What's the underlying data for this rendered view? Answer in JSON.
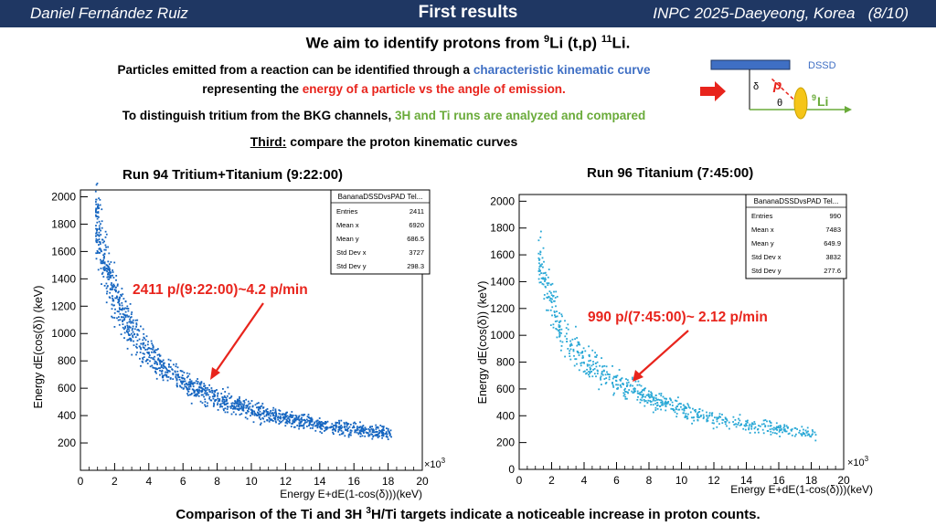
{
  "header": {
    "author": "Daniel Fernández Ruiz",
    "title": "First results",
    "conference": "INPC 2025-Daeyeong, Korea",
    "page": "(8/10)"
  },
  "headline": {
    "pre": "We aim to identify protons from ",
    "sup1": "9",
    "mid": "Li (t,p) ",
    "sup2": "11",
    "post": "Li."
  },
  "intro": {
    "line1_pre": "Particles emitted from a reaction can be identified through a ",
    "line1_colored": "characteristic kinematic curve",
    "line2_pre": "representing the ",
    "line2_colored": "energy of a particle vs the angle of emission.",
    "line3_pre": "To distinguish tritium from the BKG channels, ",
    "line3_colored": "3H and Ti runs are analyzed and compared",
    "line4_label": "Third:",
    "line4_text": " compare the proton kinematic curves"
  },
  "diagram": {
    "detector": "DSSD",
    "delta": "δ",
    "theta": "θ",
    "particle": "p",
    "beam_sup": "9",
    "beam": "Li"
  },
  "colors": {
    "header_bg": "#1f3763",
    "blue": "#3f6fc4",
    "red": "#e8241c",
    "green": "#6aab3a",
    "marker_left": "#1565c0",
    "marker_right": "#29a8d6"
  },
  "chart_data": [
    {
      "type": "scatter",
      "run_title": "Run 94 Tritium+Titanium (9:22:00)",
      "xlabel": "Energy E+dE(1-cos(δ)))(keV)",
      "ylabel": "Energy dE(cos(δ)) (keV)",
      "x_multiplier": "×10",
      "x_multiplier_exp": "3",
      "xlim": [
        0,
        20
      ],
      "ylim": [
        0,
        2050
      ],
      "x_ticks": [
        "0",
        "2",
        "4",
        "6",
        "8",
        "10",
        "12",
        "14",
        "16",
        "18",
        "20"
      ],
      "y_ticks": [
        "200",
        "400",
        "600",
        "800",
        "1000",
        "1200",
        "1400",
        "1600",
        "1800",
        "2000"
      ],
      "curve_x": [
        0.9,
        1.5,
        2.0,
        2.5,
        3.0,
        4.0,
        5.0,
        6.0,
        8.0,
        10.0,
        12.0,
        14.0,
        16.0,
        18.0
      ],
      "curve_y": [
        1850,
        1500,
        1280,
        1130,
        1010,
        850,
        740,
        650,
        530,
        440,
        380,
        330,
        300,
        270
      ],
      "stats": {
        "title": "BananaDSSDvsPAD Tel...",
        "rows": [
          {
            "label": "Entries",
            "value": "2411"
          },
          {
            "label": "Mean x",
            "value": "6920"
          },
          {
            "label": "Mean y",
            "value": "686.5"
          },
          {
            "label": "Std Dev x",
            "value": "3727"
          },
          {
            "label": "Std Dev y",
            "value": "298.3"
          }
        ]
      },
      "annotation": "2411 p/(9:22:00)~4.2 p/min"
    },
    {
      "type": "scatter",
      "run_title": "Run 96 Titanium (7:45:00)",
      "xlabel": "Energy E+dE(1-cos(δ)))(keV)",
      "ylabel": "Energy dE(cos(δ)) (keV)",
      "x_multiplier": "×10",
      "x_multiplier_exp": "3",
      "xlim": [
        0,
        20
      ],
      "ylim": [
        0,
        2050
      ],
      "x_ticks": [
        "0",
        "2",
        "4",
        "6",
        "8",
        "10",
        "12",
        "14",
        "16",
        "18",
        "20"
      ],
      "y_ticks": [
        "0",
        "200",
        "400",
        "600",
        "800",
        "1000",
        "1200",
        "1400",
        "1600",
        "1800",
        "2000"
      ],
      "curve_x": [
        1.2,
        1.8,
        2.5,
        3.0,
        4.0,
        5.0,
        6.0,
        8.0,
        10.0,
        12.0,
        14.0,
        16.0,
        18.0
      ],
      "curve_y": [
        1550,
        1300,
        1080,
        960,
        820,
        720,
        640,
        530,
        440,
        380,
        330,
        300,
        265
      ],
      "stats": {
        "title": "BananaDSSDvsPAD Tel...",
        "rows": [
          {
            "label": "Entries",
            "value": "990"
          },
          {
            "label": "Mean x",
            "value": "7483"
          },
          {
            "label": "Mean y",
            "value": "649.9"
          },
          {
            "label": "Std Dev x",
            "value": "3832"
          },
          {
            "label": "Std Dev y",
            "value": "277.6"
          }
        ]
      },
      "annotation": "990 p/(7:45:00)~ 2.12 p/min"
    }
  ],
  "footer": {
    "pre": "Comparison of the Ti and 3H ",
    "sup": "3",
    "post": "H/Ti targets indicate a noticeable increase in proton counts."
  }
}
